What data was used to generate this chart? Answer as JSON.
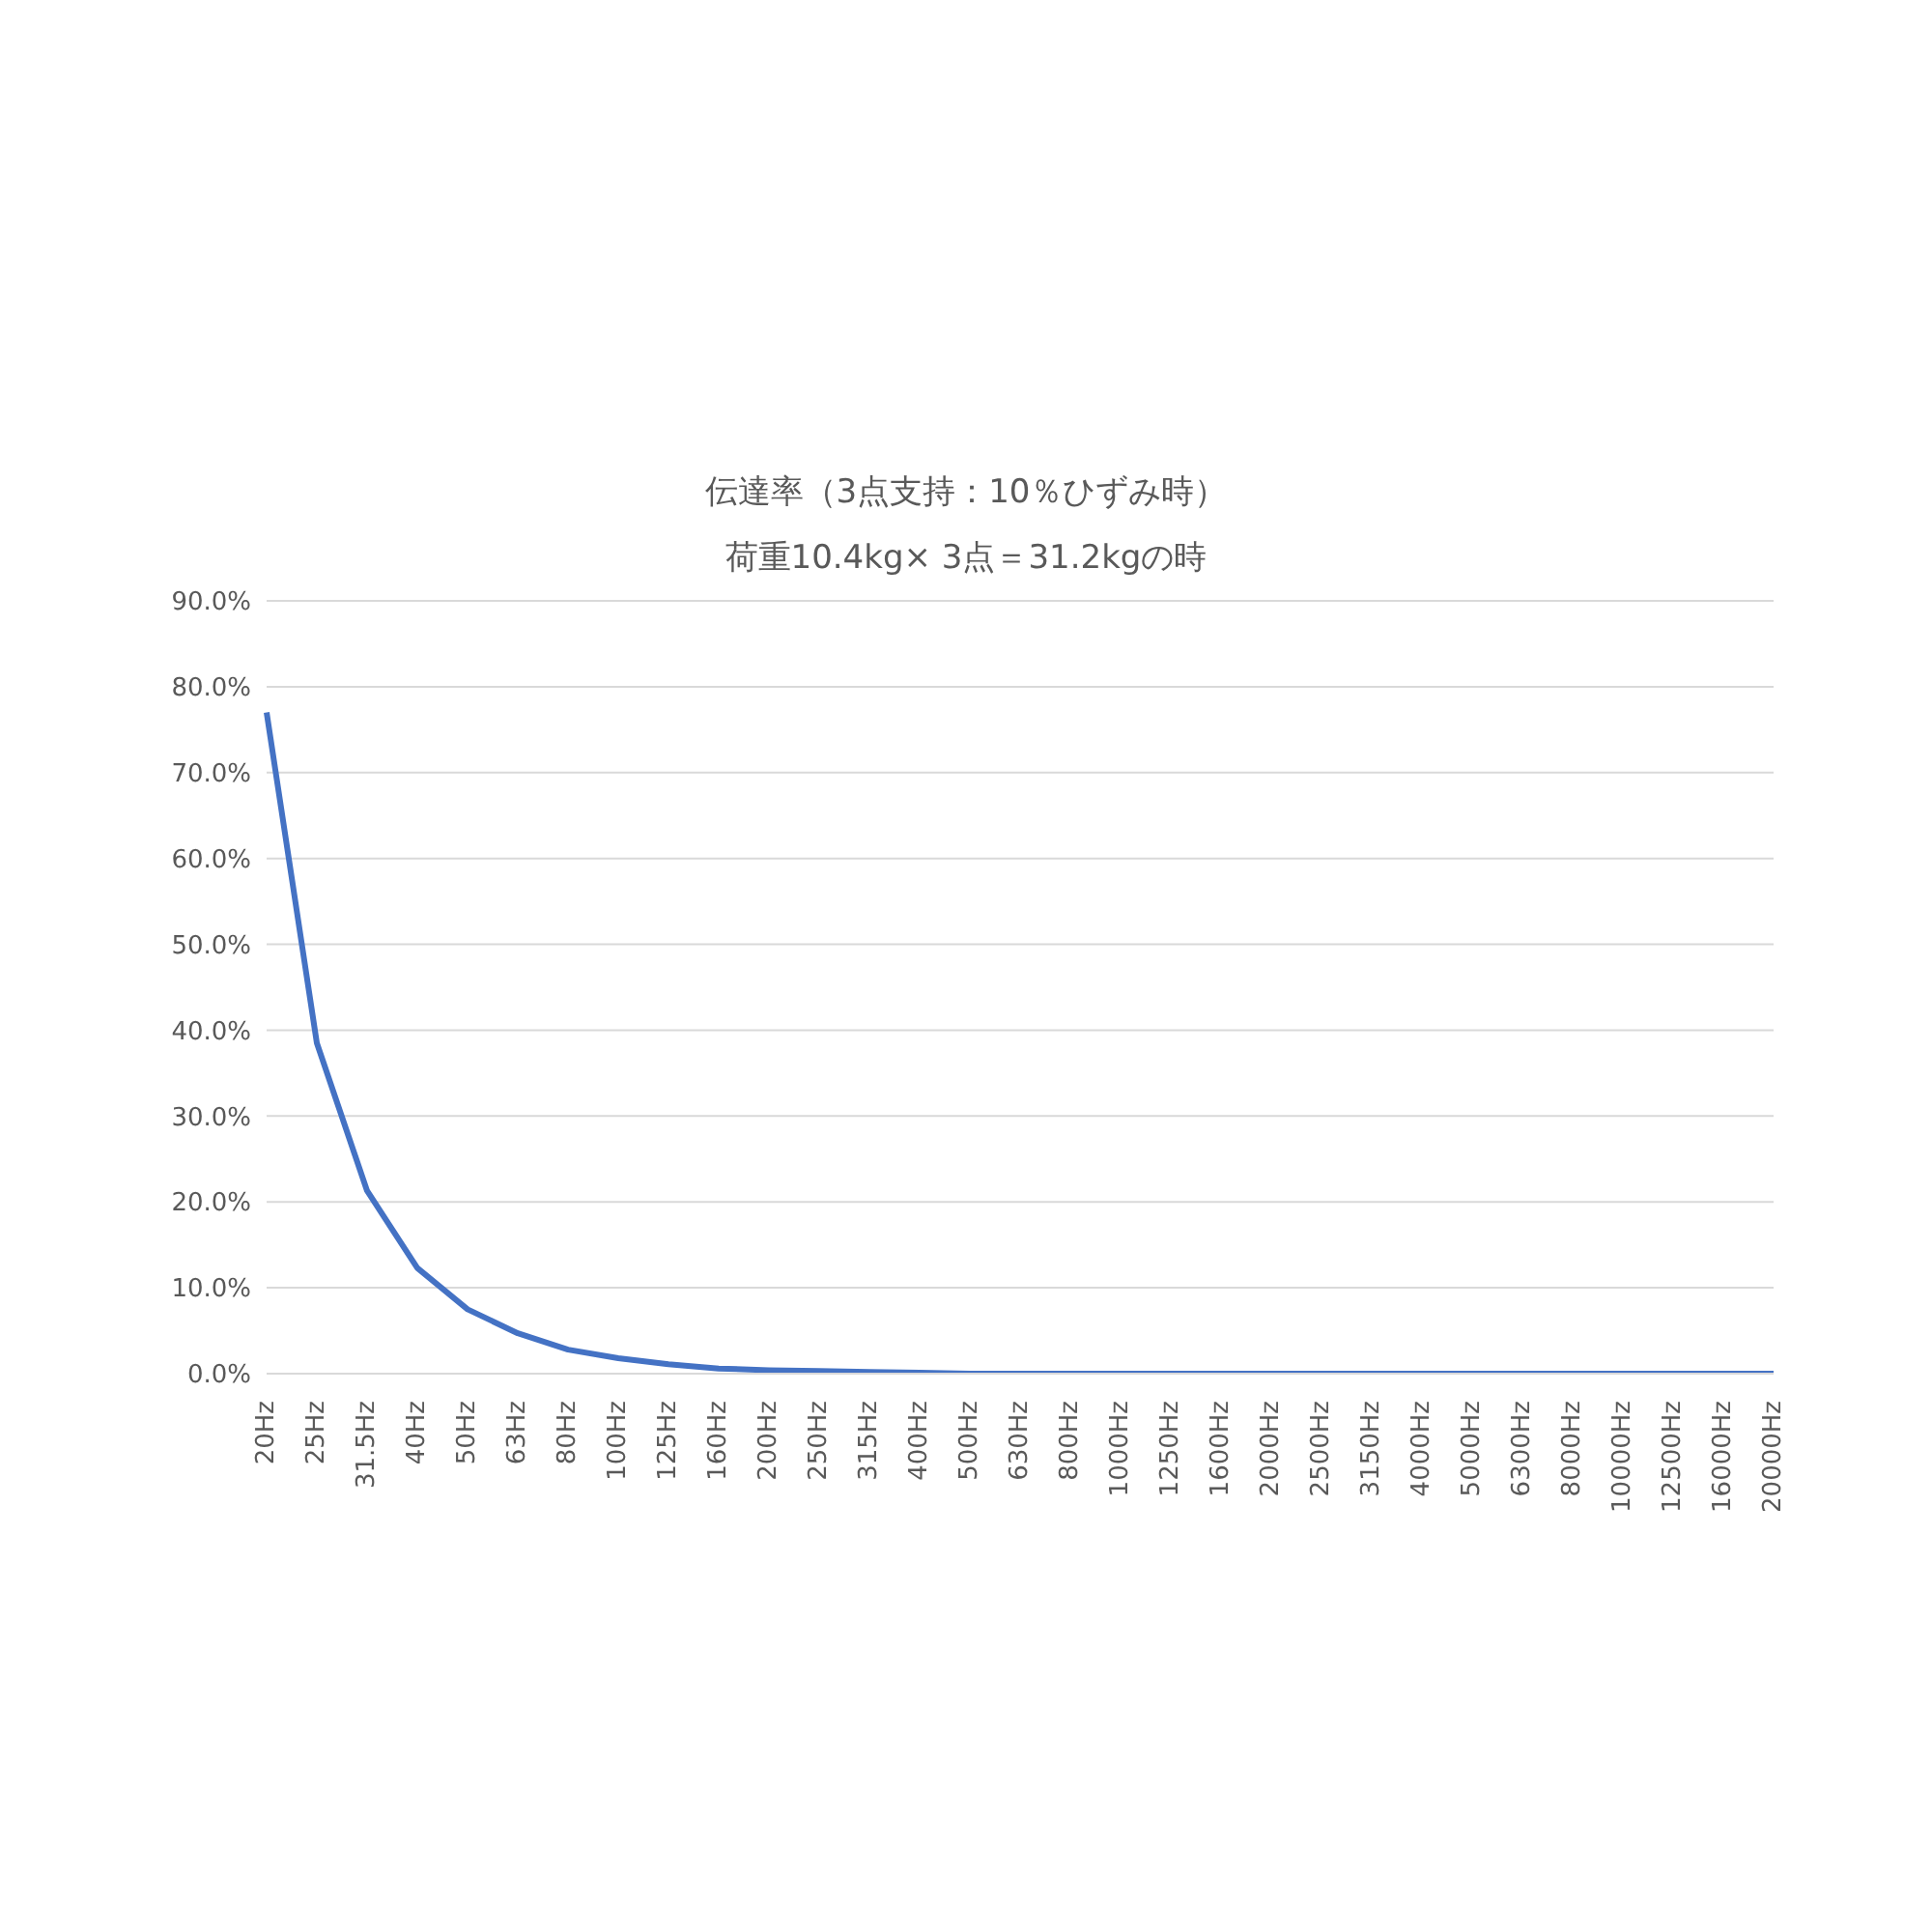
{
  "chart_data": {
    "type": "line",
    "title": "伝達率（3点支持：10％ひずみ時）",
    "subtitle": "荷重10.4kg× 3点＝31.2kgの時",
    "categories": [
      "20Hz",
      "25Hz",
      "31.5Hz",
      "40Hz",
      "50Hz",
      "63Hz",
      "80Hz",
      "100Hz",
      "125Hz",
      "160Hz",
      "200Hz",
      "250Hz",
      "315Hz",
      "400Hz",
      "500Hz",
      "630Hz",
      "800Hz",
      "1000Hz",
      "1250Hz",
      "1600Hz",
      "2000Hz",
      "2500Hz",
      "3150Hz",
      "4000Hz",
      "5000Hz",
      "6300Hz",
      "8000Hz",
      "10000Hz",
      "12500Hz",
      "16000Hz",
      "20000Hz"
    ],
    "values": [
      77,
      38.5,
      21.3,
      12.3,
      7.5,
      4.7,
      2.8,
      1.8,
      1.1,
      0.6,
      0.4,
      0.3,
      0.2,
      0.1,
      0,
      0,
      0,
      0,
      0,
      0,
      0,
      0,
      0,
      0,
      0,
      0,
      0,
      0,
      0,
      0,
      0
    ],
    "color": "#4472c4",
    "ylim": [
      0,
      90
    ],
    "yticks": [
      {
        "value": 0,
        "label": "0.0%"
      },
      {
        "value": 10,
        "label": "10.0%"
      },
      {
        "value": 20,
        "label": "20.0%"
      },
      {
        "value": 30,
        "label": "30.0%"
      },
      {
        "value": 40,
        "label": "40.0%"
      },
      {
        "value": 50,
        "label": "50.0%"
      },
      {
        "value": 60,
        "label": "60.0%"
      },
      {
        "value": 70,
        "label": "70.0%"
      },
      {
        "value": 80,
        "label": "80.0%"
      },
      {
        "value": 90,
        "label": "90.0%"
      }
    ],
    "grid": "y",
    "marker": "none",
    "line_style": "solid"
  }
}
